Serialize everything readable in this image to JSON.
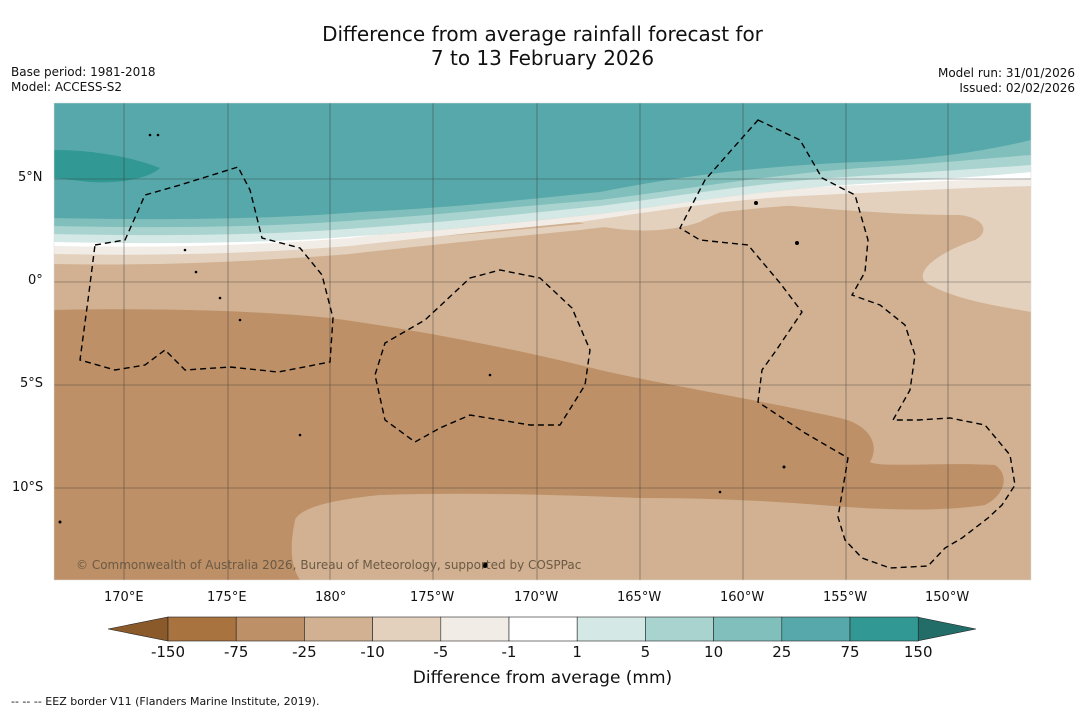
{
  "header": {
    "title_line1": "Difference from average rainfall forecast for",
    "title_line2": "7 to 13 February 2026",
    "base_period": "Base period: 1981-2018",
    "model": "Model: ACCESS-S2",
    "model_run": "Model run: 31/01/2026",
    "issued": "Issued: 02/02/2026"
  },
  "map": {
    "copyright": "© Commonwealth of Australia 2026, Bureau of Meteorology, supported by COSPPac",
    "lat_labels": [
      "5°N",
      "0°",
      "5°S",
      "10°S"
    ],
    "lon_labels": [
      "170°E",
      "175°E",
      "180°",
      "175°W",
      "170°W",
      "165°W",
      "160°W",
      "155°W",
      "150°W"
    ]
  },
  "colorbar": {
    "xlabel": "Difference from average (mm)",
    "ticks": [
      "-150",
      "-75",
      "-25",
      "-10",
      "-5",
      "-1",
      "1",
      "5",
      "10",
      "25",
      "75",
      "150"
    ],
    "colors": [
      "#a9733f",
      "#bd9067",
      "#d1b191",
      "#e3d1bd",
      "#f2ece6",
      "#ffffff",
      "#d4e8e5",
      "#a9d3cf",
      "#80bfbb",
      "#57a8aa",
      "#319893",
      "#1f7f7a"
    ]
  },
  "footnote": "--  --  -- EEZ border V11 (Flanders Marine Institute, 2019)."
}
